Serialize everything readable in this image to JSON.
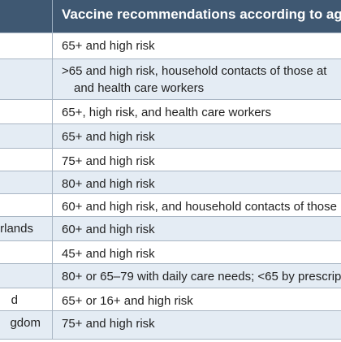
{
  "header": {
    "recommendation_label": "Vaccine recommendations according to age"
  },
  "rows": [
    {
      "country": "",
      "lines": [
        "65+ and high risk"
      ]
    },
    {
      "country": "",
      "lines": [
        ">65 and high risk, household contacts of those at",
        "and health care workers"
      ]
    },
    {
      "country": "",
      "lines": [
        "65+, high risk, and health care workers"
      ]
    },
    {
      "country": "",
      "lines": [
        "65+ and high risk"
      ]
    },
    {
      "country": "",
      "lines": [
        "75+ and high risk"
      ]
    },
    {
      "country": "",
      "lines": [
        "80+ and high risk"
      ]
    },
    {
      "country": "",
      "lines": [
        "60+ and high risk, and household contacts of those"
      ]
    },
    {
      "country": "rlands",
      "lines": [
        "60+ and high risk"
      ]
    },
    {
      "country": "",
      "lines": [
        "45+ and high risk"
      ]
    },
    {
      "country": "",
      "lines": [
        "80+ or 65–79 with daily care needs; <65 by prescrip"
      ]
    },
    {
      "country": "d",
      "lines": [
        "65+ or 16+ and high risk"
      ]
    },
    {
      "country": "gdom",
      "lines": [
        "75+ and high risk"
      ]
    }
  ]
}
